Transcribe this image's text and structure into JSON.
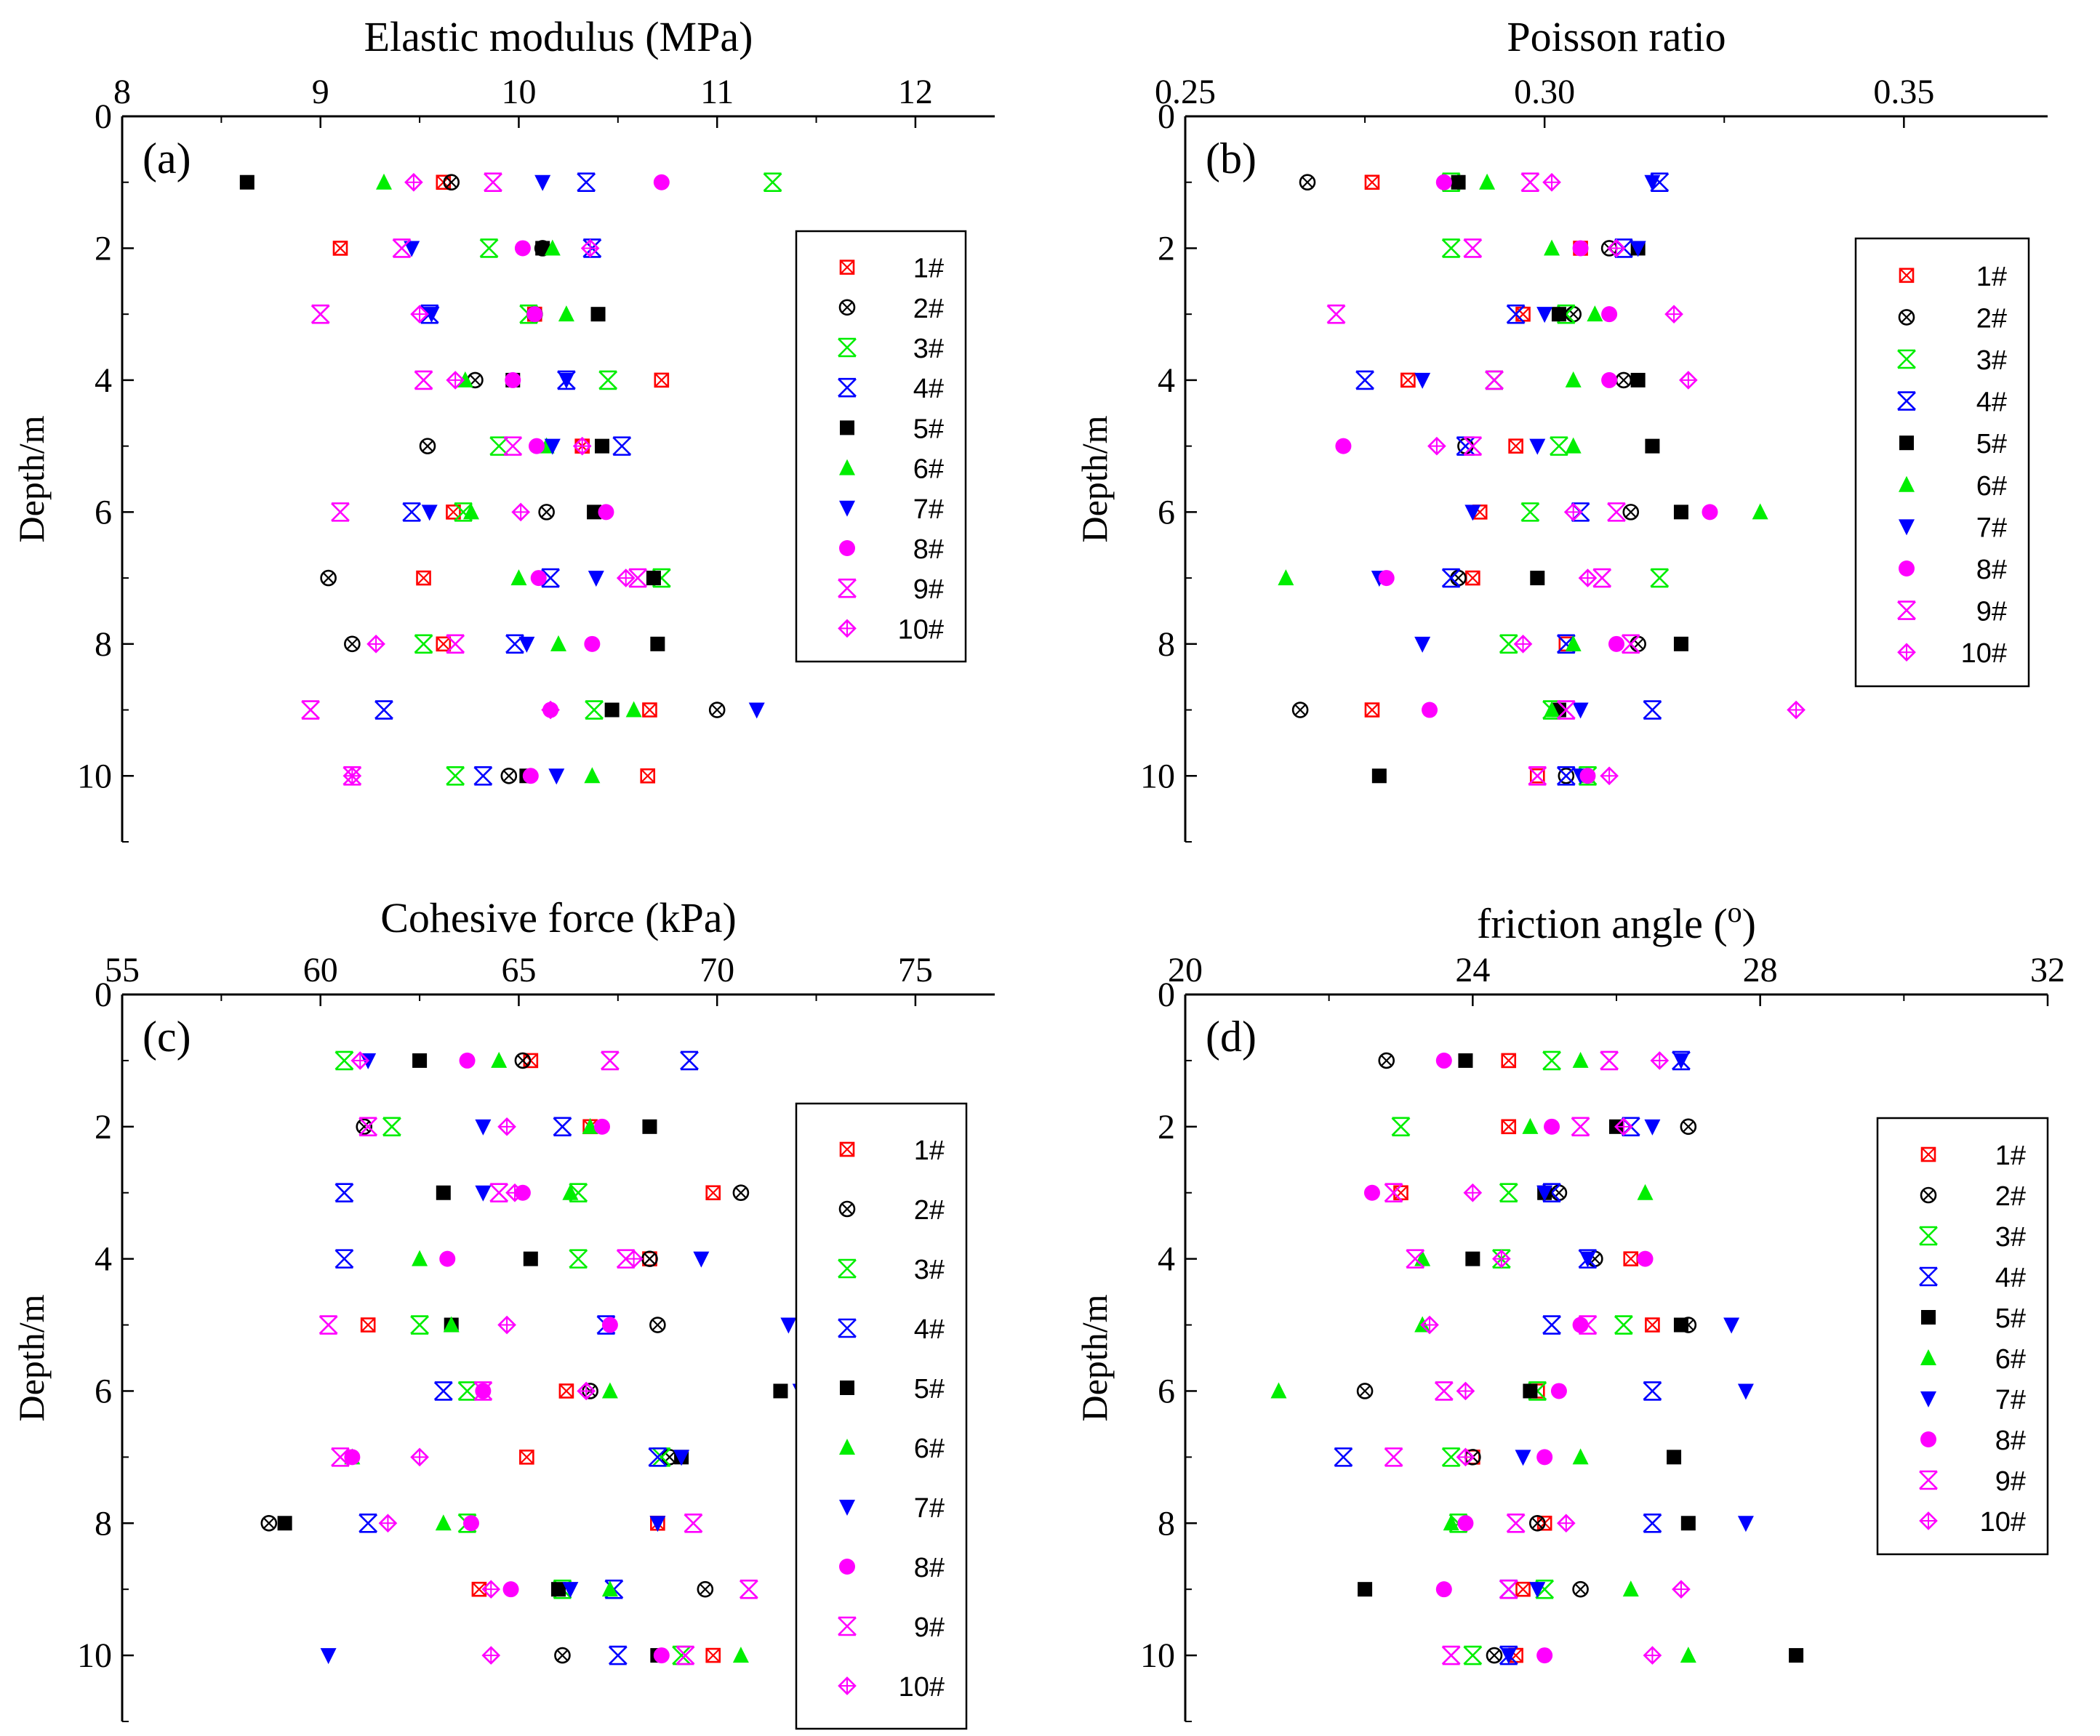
{
  "series_names": [
    "1#",
    "2#",
    "3#",
    "4#",
    "5#",
    "6#",
    "7#",
    "8#",
    "9#",
    "10#"
  ],
  "series_colors": {
    "1#": "#ff0000",
    "2#": "#000000",
    "3#": "#00ee00",
    "4#": "#0000ff",
    "5#": "#000000",
    "6#": "#00ee00",
    "7#": "#0000ff",
    "8#": "#ff00ff",
    "9#": "#ff00ff",
    "10#": "#ff00ff"
  },
  "series_markers": {
    "1#": "boxed-x",
    "2#": "circled-x",
    "3#": "open-star",
    "4#": "open-star",
    "5#": "filled-square",
    "6#": "filled-triangle-up",
    "7#": "filled-triangle-down",
    "8#": "filled-circle",
    "9#": "open-star",
    "10#": "diamond-plus"
  },
  "chart_data": [
    {
      "type": "scatter",
      "panel_label": "(a)",
      "title": "Elastic modulus (MPa)",
      "xlabel": "Elastic modulus (MPa)",
      "ylabel": "Depth/m",
      "xlim": [
        8,
        12.4
      ],
      "ylim": [
        0,
        11
      ],
      "xticks": [
        "8",
        "9",
        "10",
        "11",
        "12"
      ],
      "yticks": [
        "0",
        "2",
        "4",
        "6",
        "8",
        "10"
      ],
      "legend": [
        "1#",
        "2#",
        "3#",
        "4#",
        "5#",
        "6#",
        "7#",
        "8#",
        "9#",
        "10#"
      ],
      "depth": [
        1,
        2,
        3,
        4,
        5,
        6,
        7,
        8,
        9,
        10
      ],
      "series": [
        {
          "name": "1#",
          "values": [
            9.62,
            9.1,
            10.08,
            10.72,
            10.32,
            9.67,
            9.52,
            9.62,
            10.66,
            10.65
          ]
        },
        {
          "name": "2#",
          "values": [
            9.66,
            10.12,
            10.08,
            9.78,
            9.54,
            10.14,
            9.04,
            9.16,
            11.0,
            9.95
          ]
        },
        {
          "name": "3#",
          "values": [
            11.28,
            9.85,
            10.05,
            10.45,
            9.9,
            9.72,
            10.72,
            9.52,
            10.38,
            9.68
          ]
        },
        {
          "name": "4#",
          "values": [
            10.34,
            10.37,
            9.55,
            10.24,
            10.52,
            9.46,
            10.16,
            9.98,
            9.32,
            9.82
          ]
        },
        {
          "name": "5#",
          "values": [
            8.63,
            10.12,
            10.4,
            9.97,
            10.42,
            10.38,
            10.68,
            10.7,
            10.47,
            10.04
          ]
        },
        {
          "name": "6#",
          "values": [
            9.32,
            10.17,
            10.24,
            9.73,
            10.14,
            9.76,
            10.0,
            10.2,
            10.58,
            10.37
          ]
        },
        {
          "name": "7#",
          "values": [
            10.12,
            9.46,
            9.56,
            10.24,
            10.17,
            9.55,
            10.39,
            10.04,
            11.2,
            10.19
          ]
        },
        {
          "name": "8#",
          "values": [
            10.72,
            10.02,
            10.08,
            9.97,
            10.09,
            10.44,
            10.1,
            10.37,
            10.16,
            10.06
          ]
        },
        {
          "name": "9#",
          "values": [
            9.87,
            9.41,
            9.0,
            9.52,
            9.97,
            9.1,
            10.6,
            9.68,
            8.95,
            9.16
          ]
        },
        {
          "name": "10#",
          "values": [
            9.47,
            10.36,
            9.5,
            9.68,
            10.32,
            10.01,
            10.54,
            9.28,
            10.16,
            9.16
          ]
        }
      ]
    },
    {
      "type": "scatter",
      "panel_label": "(b)",
      "title": "Poisson ratio",
      "xlabel": "Poisson ratio",
      "ylabel": "Depth/m",
      "xlim": [
        0.25,
        0.37
      ],
      "ylim": [
        0,
        11
      ],
      "xticks": [
        "0.25",
        "0.30",
        "0.35"
      ],
      "yticks": [
        "0",
        "2",
        "4",
        "6",
        "8",
        "10"
      ],
      "legend": [
        "1#",
        "2#",
        "3#",
        "4#",
        "5#",
        "6#",
        "7#",
        "8#",
        "9#",
        "10#"
      ],
      "depth": [
        1,
        2,
        3,
        4,
        5,
        6,
        7,
        8,
        9,
        10
      ],
      "series": [
        {
          "name": "1#",
          "values": [
            0.276,
            0.305,
            0.297,
            0.281,
            0.296,
            0.291,
            0.29,
            0.303,
            0.276,
            0.299
          ]
        },
        {
          "name": "2#",
          "values": [
            0.267,
            0.309,
            0.304,
            0.311,
            0.289,
            0.312,
            0.288,
            0.313,
            0.266,
            0.303
          ]
        },
        {
          "name": "3#",
          "values": [
            0.287,
            0.287,
            0.303,
            0.293,
            0.302,
            0.298,
            0.316,
            0.295,
            0.301,
            0.306
          ]
        },
        {
          "name": "4#",
          "values": [
            0.316,
            0.311,
            0.296,
            0.275,
            0.289,
            0.305,
            0.287,
            0.303,
            0.315,
            0.303
          ]
        },
        {
          "name": "5#",
          "values": [
            0.288,
            0.313,
            0.302,
            0.313,
            0.315,
            0.319,
            0.299,
            0.319,
            0.302,
            0.277
          ]
        },
        {
          "name": "6#",
          "values": [
            0.292,
            0.301,
            0.307,
            0.304,
            0.304,
            0.33,
            0.264,
            0.304,
            0.301,
            0.306
          ]
        },
        {
          "name": "7#",
          "values": [
            0.315,
            0.313,
            0.3,
            0.283,
            0.299,
            0.29,
            0.277,
            0.283,
            0.305,
            0.305
          ]
        },
        {
          "name": "8#",
          "values": [
            0.286,
            0.305,
            0.309,
            0.309,
            0.272,
            0.323,
            0.278,
            0.31,
            0.284,
            0.306
          ]
        },
        {
          "name": "9#",
          "values": [
            0.298,
            0.29,
            0.271,
            0.293,
            0.29,
            0.31,
            0.308,
            0.312,
            0.303,
            0.299
          ]
        },
        {
          "name": "10#",
          "values": [
            0.301,
            0.31,
            0.318,
            0.32,
            0.285,
            0.304,
            0.306,
            0.297,
            0.335,
            0.309
          ]
        }
      ]
    },
    {
      "type": "scatter",
      "panel_label": "(c)",
      "title": "Cohesive force (kPa)",
      "xlabel": "Cohesive force (kPa)",
      "ylabel": "Depth/m",
      "xlim": [
        55,
        77
      ],
      "ylim": [
        0,
        11
      ],
      "xticks": [
        "55",
        "60",
        "65",
        "70",
        "75"
      ],
      "yticks": [
        "0",
        "2",
        "4",
        "6",
        "8",
        "10"
      ],
      "legend": [
        "1#",
        "2#",
        "3#",
        "4#",
        "5#",
        "6#",
        "7#",
        "8#",
        "9#",
        "10#"
      ],
      "depth": [
        1,
        2,
        3,
        4,
        5,
        6,
        7,
        8,
        9,
        10
      ],
      "series": [
        {
          "name": "1#",
          "values": [
            65.3,
            66.8,
            69.9,
            68.3,
            61.2,
            66.2,
            65.2,
            68.5,
            64.0,
            69.9
          ]
        },
        {
          "name": "2#",
          "values": [
            65.1,
            61.1,
            70.6,
            68.3,
            68.5,
            66.8,
            68.8,
            58.7,
            69.7,
            66.1
          ]
        },
        {
          "name": "3#",
          "values": [
            60.6,
            61.8,
            66.5,
            66.5,
            62.5,
            63.7,
            68.6,
            63.7,
            66.1,
            69.1
          ]
        },
        {
          "name": "4#",
          "values": [
            69.3,
            66.1,
            60.6,
            60.6,
            67.2,
            63.1,
            68.5,
            61.2,
            67.4,
            67.5
          ]
        },
        {
          "name": "5#",
          "values": [
            62.5,
            68.3,
            63.1,
            65.3,
            63.3,
            71.6,
            69.1,
            59.1,
            66.0,
            68.5
          ]
        },
        {
          "name": "6#",
          "values": [
            64.5,
            66.8,
            66.3,
            62.5,
            63.3,
            67.3,
            60.8,
            63.1,
            67.3,
            70.6
          ]
        },
        {
          "name": "7#",
          "values": [
            61.2,
            64.1,
            64.1,
            69.6,
            71.8,
            72.1,
            69.1,
            68.5,
            66.3,
            60.2
          ]
        },
        {
          "name": "8#",
          "values": [
            63.7,
            67.1,
            65.1,
            63.2,
            67.3,
            64.1,
            60.8,
            63.8,
            64.8,
            68.6
          ]
        },
        {
          "name": "9#",
          "values": [
            67.3,
            61.2,
            64.5,
            67.7,
            60.2,
            64.1,
            60.5,
            69.4,
            70.8,
            69.2
          ]
        },
        {
          "name": "10#",
          "values": [
            61.0,
            64.7,
            64.9,
            67.9,
            64.7,
            66.7,
            62.5,
            61.7,
            64.3,
            64.3
          ]
        }
      ]
    },
    {
      "type": "scatter",
      "panel_label": "(d)",
      "title": "friction angle (o)",
      "xlabel": "friction angle (o)",
      "ylabel": "Depth/m",
      "xlim": [
        20,
        32
      ],
      "ylim": [
        0,
        11
      ],
      "xticks": [
        "20",
        "24",
        "28",
        "32"
      ],
      "yticks": [
        "0",
        "2",
        "4",
        "6",
        "8",
        "10"
      ],
      "legend": [
        "1#",
        "2#",
        "3#",
        "4#",
        "5#",
        "6#",
        "7#",
        "8#",
        "9#",
        "10#"
      ],
      "depth": [
        1,
        2,
        3,
        4,
        5,
        6,
        7,
        8,
        9,
        10
      ],
      "series": [
        {
          "name": "1#",
          "values": [
            24.5,
            24.5,
            23.0,
            26.2,
            26.5,
            24.9,
            24.0,
            25.0,
            24.7,
            24.6
          ]
        },
        {
          "name": "2#",
          "values": [
            22.8,
            27.0,
            25.2,
            25.7,
            27.0,
            22.5,
            24.0,
            24.9,
            25.5,
            24.3
          ]
        },
        {
          "name": "3#",
          "values": [
            25.1,
            23.0,
            24.5,
            24.4,
            26.1,
            24.9,
            23.7,
            23.8,
            25.0,
            24.0
          ]
        },
        {
          "name": "4#",
          "values": [
            26.9,
            26.2,
            25.1,
            25.6,
            25.1,
            26.5,
            22.2,
            26.5,
            24.5,
            24.5
          ]
        },
        {
          "name": "5#",
          "values": [
            23.9,
            26.0,
            25.0,
            24.0,
            26.9,
            24.8,
            26.8,
            27.0,
            22.5,
            28.5
          ]
        },
        {
          "name": "6#",
          "values": [
            25.5,
            24.8,
            26.4,
            23.3,
            23.3,
            21.3,
            25.5,
            23.7,
            26.2,
            27.0
          ]
        },
        {
          "name": "7#",
          "values": [
            26.9,
            26.5,
            25.0,
            25.6,
            27.6,
            27.8,
            24.7,
            27.8,
            24.9,
            24.5
          ]
        },
        {
          "name": "8#",
          "values": [
            23.6,
            25.1,
            22.6,
            26.4,
            25.5,
            25.2,
            25.0,
            23.9,
            23.6,
            25.0
          ]
        },
        {
          "name": "9#",
          "values": [
            25.9,
            25.5,
            22.9,
            23.2,
            25.6,
            23.6,
            22.9,
            24.6,
            24.5,
            23.7
          ]
        },
        {
          "name": "10#",
          "values": [
            26.6,
            26.1,
            24.0,
            24.4,
            23.4,
            23.9,
            23.9,
            25.3,
            26.9,
            26.5
          ]
        }
      ]
    }
  ]
}
